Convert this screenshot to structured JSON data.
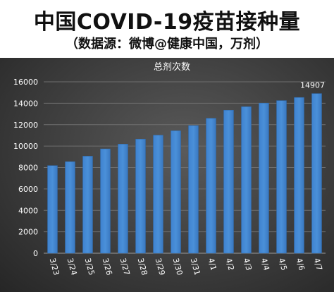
{
  "header": {
    "title": "中国COVID-19疫苗接种量",
    "subtitle": "（数据源：微博@健康中国，万剂）"
  },
  "chart_data": {
    "type": "bar",
    "title": "总剂次数",
    "categories": [
      "3/23",
      "3/24",
      "3/25",
      "3/26",
      "3/27",
      "3/28",
      "3/29",
      "3/30",
      "3/31",
      "4/1",
      "4/2",
      "4/3",
      "4/4",
      "4/5",
      "4/6",
      "4/7"
    ],
    "values": [
      8184,
      8549,
      9059,
      9742,
      10184,
      10652,
      11025,
      11432,
      11920,
      12600,
      13350,
      13680,
      14014,
      14250,
      14540,
      14907
    ],
    "data_labels": [
      {
        "index": 15,
        "text": "14907"
      }
    ],
    "ylim": [
      0,
      16000
    ],
    "yticks": [
      0,
      2000,
      4000,
      6000,
      8000,
      10000,
      12000,
      14000,
      16000
    ],
    "grid": true,
    "bar_color": "#4a90d9",
    "grid_color": "#6e6e6e"
  }
}
